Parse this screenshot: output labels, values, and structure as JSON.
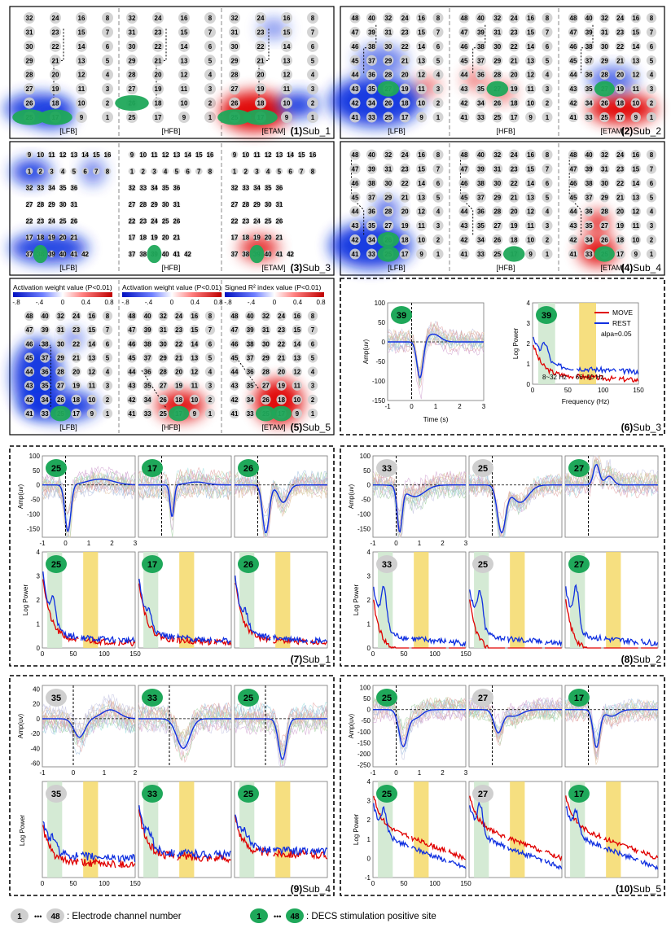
{
  "figure": {
    "panel_labels": {
      "p1": {
        "num": "(1)",
        "name": "Sub_1"
      },
      "p2": {
        "num": "(2)",
        "name": "Sub_2"
      },
      "p3": {
        "num": "(3)",
        "name": "Sub_3"
      },
      "p4": {
        "num": "(4)",
        "name": "Sub_4"
      },
      "p5": {
        "num": "(5)",
        "name": "Sub_5"
      },
      "p6": {
        "num": "(6)",
        "name": "Sub_3"
      },
      "p7": {
        "num": "(7)",
        "name": "Sub_1"
      },
      "p8": {
        "num": "(8)",
        "name": "Sub_2"
      },
      "p9": {
        "num": "(9)",
        "name": "Sub_4"
      },
      "p10": {
        "num": "(10)",
        "name": "Sub_5"
      }
    },
    "band_labels": [
      "[LFB]",
      "[HFB]",
      "[ETAM]"
    ],
    "grids": {
      "g48": [
        [
          48,
          40,
          32,
          24,
          16,
          8
        ],
        [
          47,
          39,
          31,
          23,
          15,
          7
        ],
        [
          46,
          38,
          30,
          22,
          14,
          6
        ],
        [
          45,
          37,
          29,
          21,
          13,
          5
        ],
        [
          44,
          36,
          28,
          20,
          12,
          4
        ],
        [
          43,
          35,
          27,
          19,
          11,
          3
        ],
        [
          42,
          34,
          26,
          18,
          10,
          2
        ],
        [
          41,
          33,
          25,
          17,
          9,
          1
        ]
      ],
      "g32": [
        [
          32,
          24,
          16,
          8
        ],
        [
          31,
          23,
          15,
          7
        ],
        [
          30,
          22,
          14,
          6
        ],
        [
          29,
          21,
          13,
          5
        ],
        [
          28,
          20,
          12,
          4
        ],
        [
          27,
          19,
          11,
          3
        ],
        [
          26,
          18,
          10,
          2
        ],
        [
          25,
          17,
          9,
          1
        ]
      ],
      "g42": [
        [
          9,
          10,
          11,
          12,
          13,
          14,
          15,
          16
        ],
        [
          1,
          2,
          3,
          4,
          5,
          6,
          7,
          8
        ],
        [
          32,
          33,
          34,
          35,
          36
        ],
        [
          27,
          28,
          29,
          30,
          31
        ],
        [
          22,
          23,
          24,
          25,
          26
        ],
        [
          17,
          18,
          19,
          20,
          21
        ],
        [
          37,
          38,
          39,
          40,
          41,
          42
        ]
      ]
    },
    "colorbars": [
      {
        "title": "Activation weight value (P<0.01)",
        "ticks": [
          "-.8",
          "-.4",
          "0",
          "0.4",
          "0.8"
        ]
      },
      {
        "title": "Activation weight value (P<0.01)",
        "ticks": [
          "-.8",
          "-.4",
          "0",
          "0.4",
          "0.8"
        ]
      },
      {
        "title": "Signed R² index value (P<0.01)",
        "ticks": [
          "-.8",
          "-.4",
          "0",
          "0.4",
          "0.8"
        ]
      }
    ],
    "panel6": {
      "electrode": "39",
      "time_ylabel": "Amp(uv)",
      "time_xlabel": "Time (s)",
      "time_yticks": [
        "100",
        "50",
        "0",
        "-50",
        "-100",
        "-150"
      ],
      "time_xticks": [
        "-1",
        "0",
        "1",
        "2",
        "3"
      ],
      "power_ylabel": "Log Power",
      "power_xlabel": "Frequency (Hz)",
      "power_yticks": [
        "4",
        "3",
        "2",
        "1",
        "0"
      ],
      "power_xticks": [
        "0",
        "50",
        "100",
        "150"
      ],
      "legend_move": "MOVE",
      "legend_rest": "REST",
      "alpha_text": "alpa=0.05",
      "band1": "8~32 Hz",
      "band2": "66~90 Hz"
    },
    "panel7": {
      "electrodes": [
        "25",
        "17",
        "26"
      ],
      "decs": [
        true,
        true,
        true
      ],
      "yticks": [
        "100",
        "50",
        "0",
        "-50",
        "-100",
        "-150"
      ],
      "xticks": [
        "-1",
        "0",
        "1",
        "2",
        "3"
      ],
      "ylabel": "Amp(uv)",
      "pticks": [
        "4",
        "3",
        "2",
        "1",
        "0"
      ],
      "pxticks": [
        "0",
        "50",
        "100",
        "150"
      ],
      "plabel": "Log Power"
    },
    "panel8": {
      "electrodes": [
        "33",
        "25",
        "27"
      ],
      "decs": [
        false,
        false,
        true
      ],
      "yticks": [
        "100",
        "50",
        "0",
        "-50",
        "-100",
        "-150"
      ],
      "xticks": [
        "-1",
        "0",
        "1",
        "2",
        "3"
      ],
      "ylabel": "Amp(uv)",
      "pticks": [
        "4",
        "3",
        "2",
        "1",
        "0"
      ],
      "pxticks": [
        "0",
        "50",
        "100",
        "150"
      ],
      "plabel": "Log Power"
    },
    "panel9": {
      "electrodes": [
        "35",
        "33",
        "25"
      ],
      "decs": [
        false,
        true,
        true
      ],
      "yticks": [
        "40",
        "20",
        "0",
        "-20",
        "-40",
        "-60"
      ],
      "xticks": [
        "-1",
        "0",
        "1",
        "2"
      ],
      "ylabel": "Amp(uv)",
      "pticks": [],
      "pxticks": [
        "0",
        "50",
        "100",
        "150"
      ],
      "plabel": "Log Power"
    },
    "panel10": {
      "electrodes": [
        "25",
        "27",
        "17"
      ],
      "decs": [
        true,
        false,
        true
      ],
      "yticks": [
        "100",
        "50",
        "0",
        "-50",
        "-100",
        "-150",
        "-200",
        "-250"
      ],
      "xticks": [
        "-1",
        "0",
        "1",
        "2",
        "3"
      ],
      "ylabel": "Amp(uv)",
      "pticks": [
        "4",
        "3",
        "2",
        "1",
        "0",
        "-1"
      ],
      "pxticks": [
        "0",
        "50",
        "100",
        "150"
      ],
      "plabel": "Log Power"
    },
    "footer": {
      "gray_from": "1",
      "gray_to": "48",
      "gray_text": ": Electrode channel number",
      "green_from": "1",
      "green_to": "48",
      "green_text": ": DECS stimulation positive site"
    },
    "colors": {
      "red": "#e00000",
      "blue": "#1030e0",
      "green": "#1fa85a",
      "gray": "#cfcfcf",
      "yellow": "#f5d96a",
      "lightgreen": "#cfe8cf"
    }
  }
}
